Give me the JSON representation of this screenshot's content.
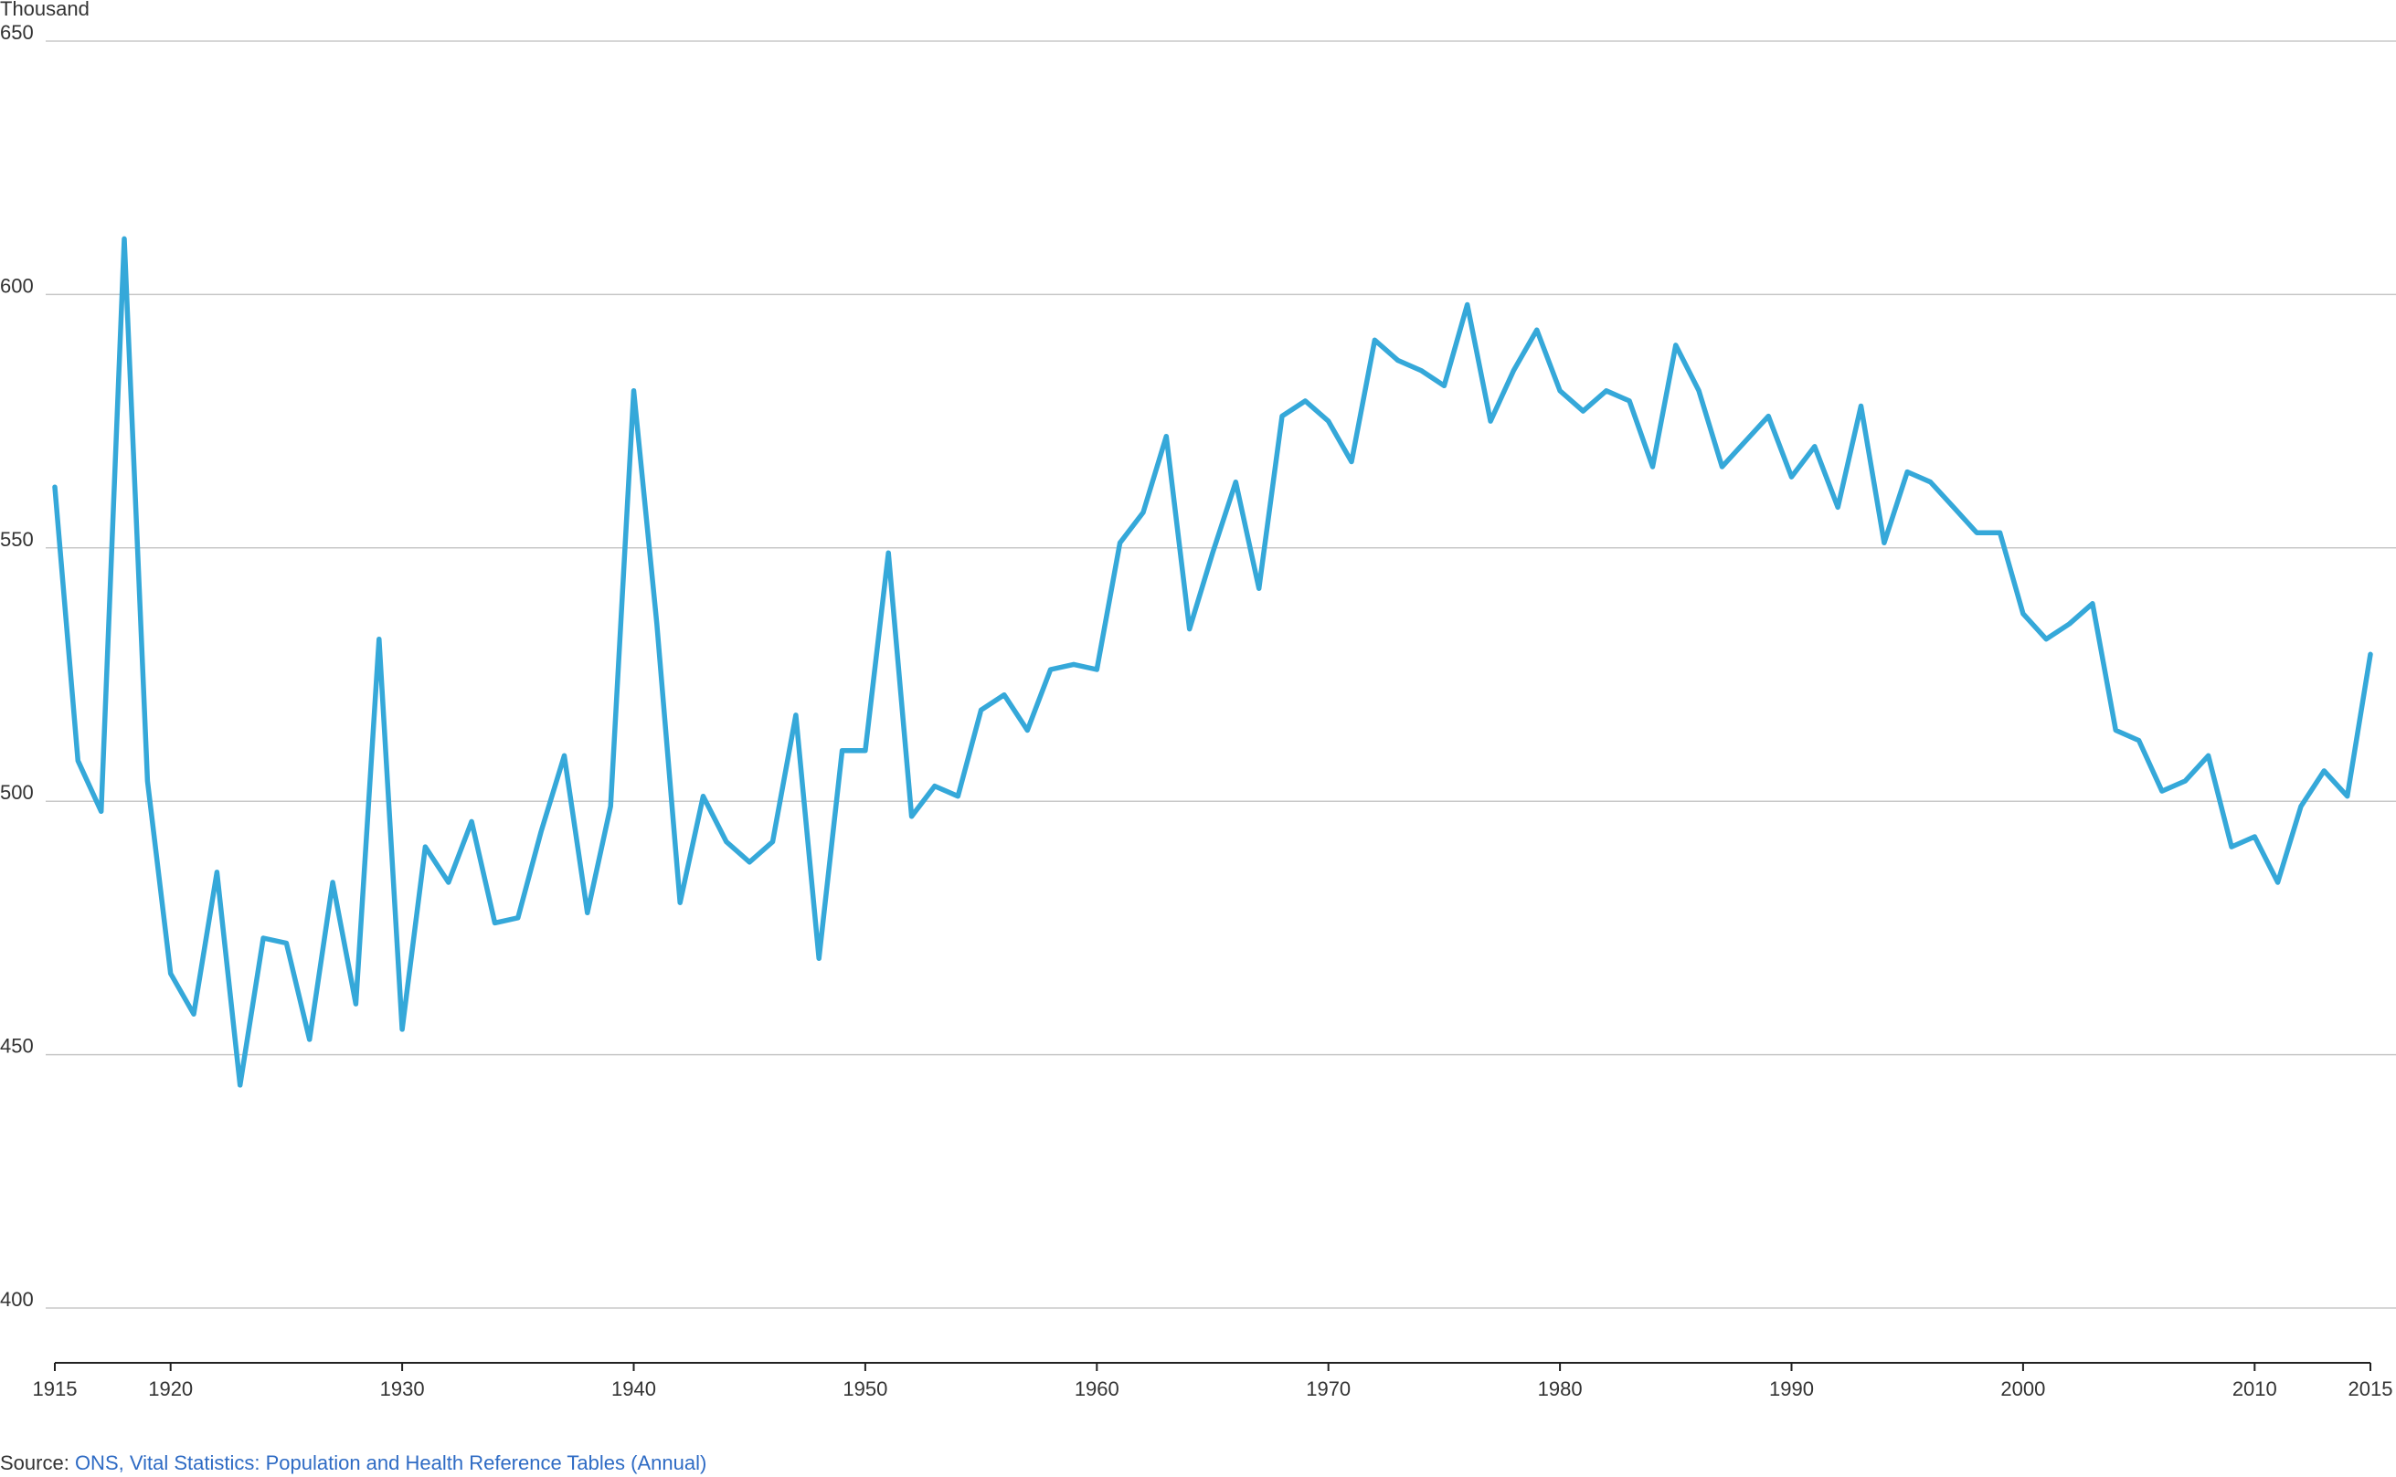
{
  "chart_data": {
    "type": "line",
    "y_unit_label": "Thousand",
    "ylim": [
      400,
      650
    ],
    "y_ticks": [
      {
        "value": 400,
        "label": "400"
      },
      {
        "value": 450,
        "label": "450"
      },
      {
        "value": 500,
        "label": "500"
      },
      {
        "value": 550,
        "label": "550"
      },
      {
        "value": 600,
        "label": "600"
      },
      {
        "value": 650,
        "label": "650"
      }
    ],
    "xlim": [
      1915,
      2015
    ],
    "x_ticks": [
      {
        "value": 1915,
        "label": "1915"
      },
      {
        "value": 1920,
        "label": "1920"
      },
      {
        "value": 1930,
        "label": "1930"
      },
      {
        "value": 1940,
        "label": "1940"
      },
      {
        "value": 1950,
        "label": "1950"
      },
      {
        "value": 1960,
        "label": "1960"
      },
      {
        "value": 1970,
        "label": "1970"
      },
      {
        "value": 1980,
        "label": "1980"
      },
      {
        "value": 1990,
        "label": "1990"
      },
      {
        "value": 2000,
        "label": "2000"
      },
      {
        "value": 2010,
        "label": "2010"
      },
      {
        "value": 2015,
        "label": "2015"
      }
    ],
    "grid": true,
    "series_color": "#35a8d9",
    "x": [
      1915,
      1916,
      1917,
      1918,
      1919,
      1920,
      1921,
      1922,
      1923,
      1924,
      1925,
      1926,
      1927,
      1928,
      1929,
      1930,
      1931,
      1932,
      1933,
      1934,
      1935,
      1936,
      1937,
      1938,
      1939,
      1940,
      1941,
      1942,
      1943,
      1944,
      1945,
      1946,
      1947,
      1948,
      1949,
      1950,
      1951,
      1952,
      1953,
      1954,
      1955,
      1956,
      1957,
      1958,
      1959,
      1960,
      1961,
      1962,
      1963,
      1964,
      1965,
      1966,
      1967,
      1968,
      1969,
      1970,
      1971,
      1972,
      1973,
      1974,
      1975,
      1976,
      1977,
      1978,
      1979,
      1980,
      1981,
      1982,
      1983,
      1984,
      1985,
      1986,
      1987,
      1988,
      1989,
      1990,
      1991,
      1992,
      1993,
      1994,
      1995,
      1996,
      1997,
      1998,
      1999,
      2000,
      2001,
      2002,
      2003,
      2004,
      2005,
      2006,
      2007,
      2008,
      2009,
      2010,
      2011,
      2012,
      2013,
      2014,
      2015
    ],
    "series": [
      {
        "values": [
          562,
          508,
          498,
          611,
          504,
          466,
          458,
          486,
          444,
          473,
          472,
          453,
          484,
          460,
          532,
          455,
          491,
          484,
          496,
          476,
          477,
          494,
          509,
          478,
          499,
          581,
          535,
          480,
          501,
          492,
          488,
          492,
          517,
          469,
          510,
          510,
          549,
          497,
          503,
          501,
          518,
          521,
          514,
          526,
          527,
          526,
          551,
          557,
          572,
          534,
          549,
          563,
          542,
          576,
          579,
          575,
          567,
          591,
          587,
          585,
          582,
          598,
          575,
          585,
          593,
          581,
          577,
          581,
          579,
          566,
          590,
          581,
          566,
          571,
          576,
          564,
          570,
          558,
          578,
          551,
          565,
          563,
          558,
          553,
          553,
          537,
          532,
          535,
          539,
          514,
          512,
          502,
          504,
          509,
          491,
          493,
          484,
          499,
          506,
          501,
          529
        ]
      }
    ]
  },
  "footer": {
    "source_prefix": "Source: ",
    "source_link_text": "ONS, Vital Statistics: Population and Health Reference Tables (Annual)"
  }
}
